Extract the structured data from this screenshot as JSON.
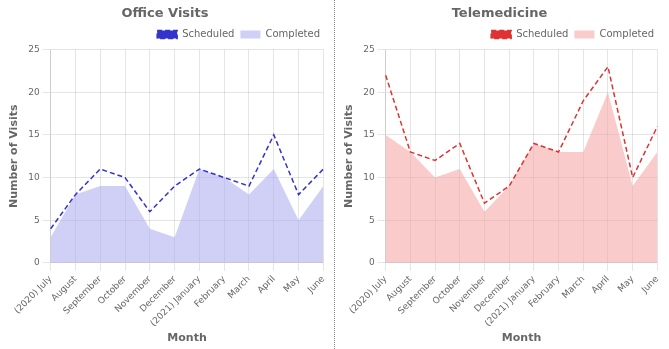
{
  "chart_data": [
    {
      "type": "line",
      "title": "Office Visits",
      "xlabel": "Month",
      "ylabel": "Number of Visits",
      "categories": [
        "(2020) July",
        "August",
        "September",
        "October",
        "November",
        "December",
        "(2021) January",
        "February",
        "March",
        "April",
        "May",
        "June"
      ],
      "series": [
        {
          "name": "Scheduled",
          "type": "line",
          "line_style": "dashed",
          "color": "#3333cc",
          "values": [
            4,
            8,
            11,
            10,
            6,
            9,
            11,
            10,
            9,
            15,
            8,
            11
          ]
        },
        {
          "name": "Completed",
          "type": "area",
          "color": "#aaaaee",
          "values": [
            3,
            8,
            9,
            9,
            4,
            3,
            11,
            10,
            8,
            11,
            5,
            9
          ]
        }
      ],
      "ylim": [
        0,
        25
      ],
      "yticks": [
        0,
        5,
        10,
        15,
        20,
        25
      ],
      "grid": true,
      "legend": "upper right"
    },
    {
      "type": "line",
      "title": "Telemedicine",
      "xlabel": "Month",
      "ylabel": "Number of Visits",
      "categories": [
        "(2020) July",
        "August",
        "September",
        "October",
        "November",
        "December",
        "(2021) January",
        "February",
        "March",
        "April",
        "May",
        "June"
      ],
      "series": [
        {
          "name": "Scheduled",
          "type": "line",
          "line_style": "dashed",
          "color": "#dd3333",
          "values": [
            22,
            13,
            12,
            14,
            7,
            9,
            14,
            13,
            19,
            23,
            10,
            16
          ]
        },
        {
          "name": "Completed",
          "type": "area",
          "color": "#f4a0a0",
          "values": [
            15,
            13,
            10,
            11,
            6,
            9,
            14,
            13,
            13,
            20,
            9,
            13
          ]
        }
      ],
      "ylim": [
        0,
        25
      ],
      "yticks": [
        0,
        5,
        10,
        15,
        20,
        25
      ],
      "grid": true,
      "legend": "upper right"
    }
  ]
}
